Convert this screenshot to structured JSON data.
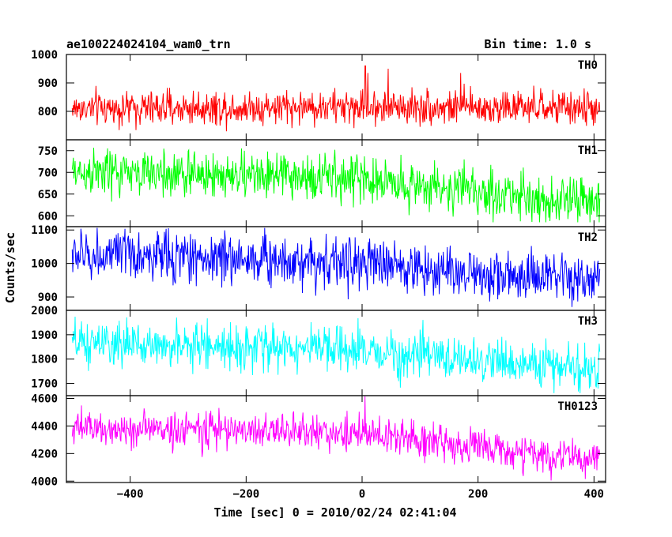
{
  "header": {
    "title": "ae100224024104_wam0_trn",
    "bin_time": "Bin time: 1.0 s"
  },
  "chart_data": {
    "type": "line",
    "xlabel": "Time [sec] 0 = 2010/02/24 02:41:04",
    "ylabel": "Counts/sec",
    "xlim": [
      -510,
      420
    ],
    "x_ticks": [
      -400,
      -200,
      0,
      200,
      400
    ],
    "x_tick_labels": [
      "−400",
      "−200",
      "0",
      "200",
      "400"
    ],
    "x_range_data": [
      -500,
      410
    ],
    "panels": [
      {
        "name": "TH0",
        "color": "#ff0000",
        "ylim": [
          700,
          1000
        ],
        "yticks": [
          800,
          900,
          1000
        ],
        "ytick_labels": [
          "800",
          "900",
          "1000"
        ],
        "base": [
          [
            -500,
            810
          ],
          [
            -300,
            812
          ],
          [
            -100,
            815
          ],
          [
            0,
            815
          ],
          [
            100,
            815
          ],
          [
            300,
            812
          ],
          [
            410,
            810
          ]
        ],
        "noise": 30,
        "min": 730,
        "max": 960,
        "spikes": [
          [
            5,
            1000
          ],
          [
            6,
            980
          ],
          [
            10,
            935
          ],
          [
            45,
            950
          ],
          [
            170,
            935
          ]
        ]
      },
      {
        "name": "TH1",
        "color": "#00ff00",
        "ylim": [
          575,
          775
        ],
        "yticks": [
          600,
          650,
          700,
          750
        ],
        "ytick_labels": [
          "600",
          "650",
          "700",
          "750"
        ],
        "base": [
          [
            -500,
            700
          ],
          [
            -300,
            695
          ],
          [
            -100,
            690
          ],
          [
            0,
            685
          ],
          [
            100,
            670
          ],
          [
            200,
            655
          ],
          [
            300,
            640
          ],
          [
            410,
            630
          ]
        ],
        "noise": 27,
        "min": 585,
        "max": 775,
        "spikes": []
      },
      {
        "name": "TH2",
        "color": "#0000ff",
        "ylim": [
          860,
          1110
        ],
        "yticks": [
          900,
          1000,
          1100
        ],
        "ytick_labels": [
          "900",
          "1000",
          "1100"
        ],
        "base": [
          [
            -500,
            1025
          ],
          [
            -300,
            1020
          ],
          [
            -100,
            1010
          ],
          [
            0,
            1000
          ],
          [
            100,
            985
          ],
          [
            200,
            970
          ],
          [
            300,
            955
          ],
          [
            410,
            945
          ]
        ],
        "noise": 38,
        "min": 870,
        "max": 1110,
        "spikes": []
      },
      {
        "name": "TH3",
        "color": "#00ffff",
        "ylim": [
          1650,
          2000
        ],
        "yticks": [
          1700,
          1800,
          1900,
          2000
        ],
        "ytick_labels": [
          "1700",
          "1800",
          "1900",
          "2000"
        ],
        "base": [
          [
            -500,
            1860
          ],
          [
            -300,
            1855
          ],
          [
            -100,
            1845
          ],
          [
            0,
            1830
          ],
          [
            100,
            1815
          ],
          [
            200,
            1795
          ],
          [
            300,
            1775
          ],
          [
            410,
            1755
          ]
        ],
        "noise": 45,
        "min": 1660,
        "max": 2000,
        "spikes": []
      },
      {
        "name": "TH0123",
        "color": "#ff00ff",
        "ylim": [
          3990,
          4620
        ],
        "yticks": [
          4000,
          4200,
          4400,
          4600
        ],
        "ytick_labels": [
          "4000",
          "4200",
          "4400",
          "4600"
        ],
        "base": [
          [
            -500,
            4380
          ],
          [
            -300,
            4375
          ],
          [
            -100,
            4360
          ],
          [
            0,
            4340
          ],
          [
            100,
            4300
          ],
          [
            200,
            4250
          ],
          [
            300,
            4190
          ],
          [
            410,
            4150
          ]
        ],
        "noise": 65,
        "min": 4000,
        "max": 4620,
        "spikes": [
          [
            5,
            4615
          ]
        ]
      }
    ]
  }
}
